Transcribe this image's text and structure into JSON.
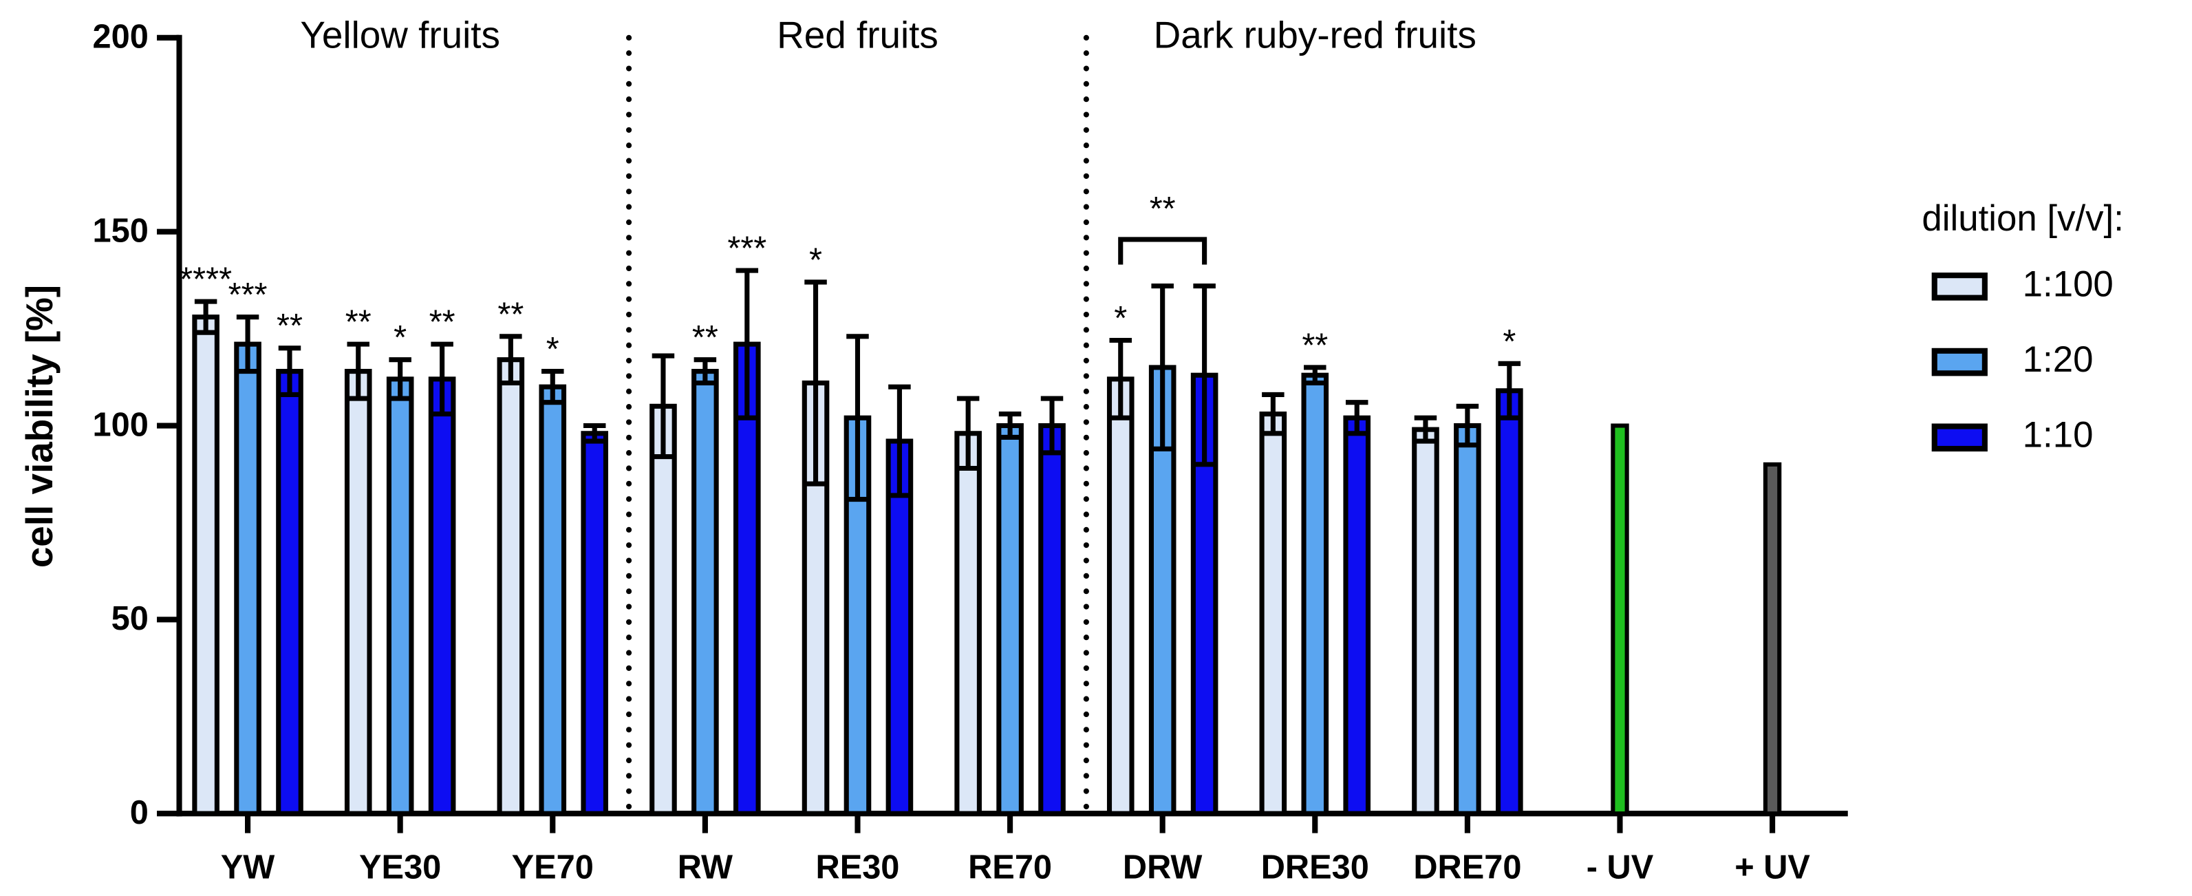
{
  "chart_data": {
    "type": "bar",
    "y_label": "cell viability [%]",
    "categories": [
      "YW",
      "YE30",
      "YE70",
      "RW",
      "RE30",
      "RE70",
      "DRW",
      "DRE30",
      "DRE70",
      "- UV",
      "+ UV"
    ],
    "ylim": [
      0,
      200
    ],
    "yticks": [
      0,
      50,
      100,
      150,
      200
    ],
    "legend_title": "dilution [v/v]:",
    "legend": "right",
    "series": [
      {
        "name": "1:100",
        "color": "#dce7f7",
        "values": [
          128,
          114,
          117,
          105,
          111,
          98,
          112,
          103,
          99,
          null,
          null
        ],
        "errors": [
          4,
          7,
          6,
          13,
          26,
          9,
          10,
          5,
          3,
          null,
          null
        ],
        "significance": [
          "****",
          "**",
          "**",
          null,
          "*",
          null,
          "*",
          null,
          null,
          null,
          null
        ]
      },
      {
        "name": "1:20",
        "color": "#5aa5f0",
        "values": [
          121,
          112,
          110,
          114,
          102,
          100,
          115,
          113,
          100,
          null,
          null
        ],
        "errors": [
          7,
          5,
          4,
          3,
          21,
          3,
          21,
          2,
          5,
          null,
          null
        ],
        "significance": [
          "***",
          "*",
          "*",
          "**",
          null,
          null,
          null,
          "**",
          null,
          null,
          null
        ]
      },
      {
        "name": "1:10",
        "color": "#0d0df2",
        "values": [
          114,
          112,
          98,
          121,
          96,
          100,
          113,
          102,
          109,
          null,
          null
        ],
        "errors": [
          6,
          9,
          2,
          19,
          14,
          7,
          23,
          4,
          7,
          null,
          null
        ],
        "significance": [
          "**",
          "**",
          null,
          "***",
          null,
          null,
          null,
          null,
          "*",
          null,
          null
        ]
      }
    ],
    "controls": {
      "values": [
        null,
        null,
        null,
        null,
        null,
        null,
        null,
        null,
        null,
        100,
        90
      ],
      "colors": [
        null,
        null,
        null,
        null,
        null,
        null,
        null,
        null,
        null,
        "#1fbf1f",
        "#5a5a5a"
      ]
    },
    "groups": [
      {
        "label": "Yellow fruits",
        "first": "YW",
        "last": "YE70"
      },
      {
        "label": "Red fruits",
        "first": "RW",
        "last": "RE70"
      },
      {
        "label": "Dark ruby-red fruits",
        "first": "DRW",
        "last": "DRE70"
      }
    ],
    "bracket": {
      "category": "DRW",
      "label": "**",
      "value": 148
    }
  }
}
